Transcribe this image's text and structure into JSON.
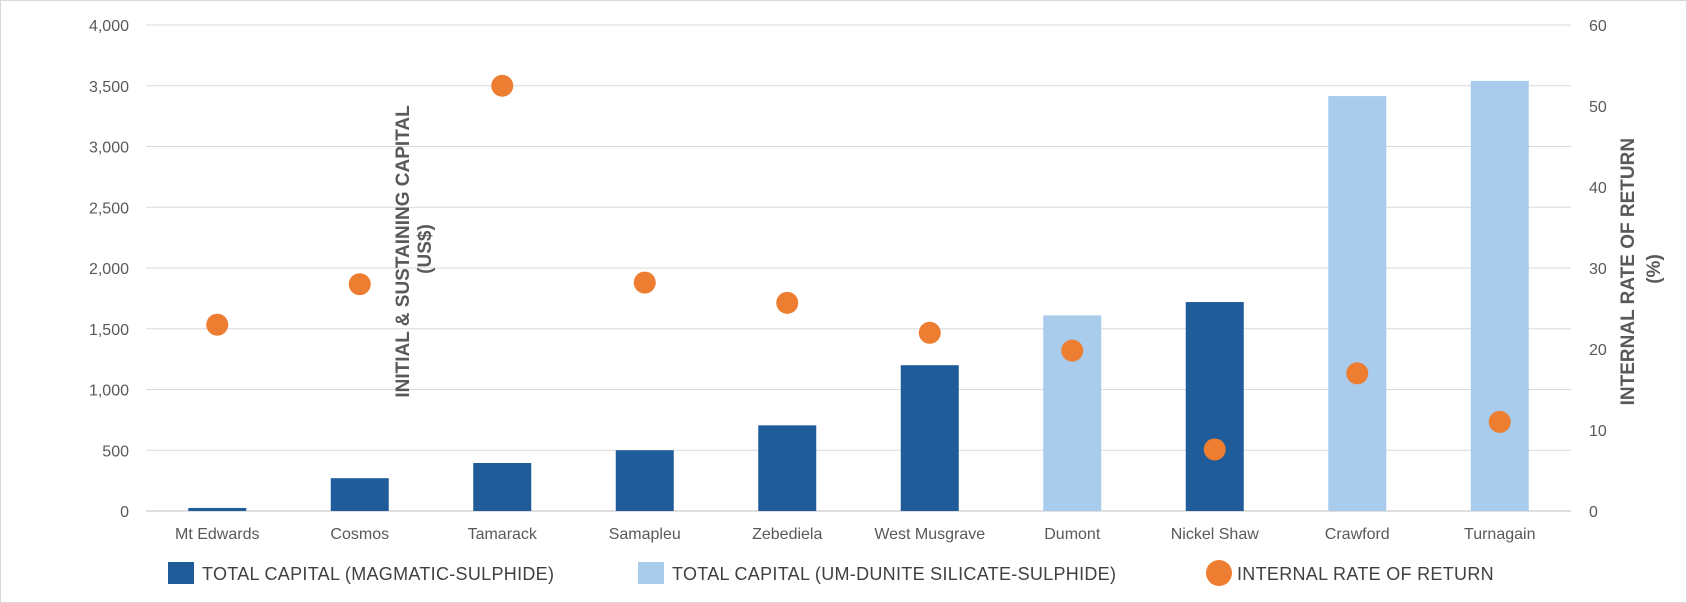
{
  "chart_data": {
    "type": "bar",
    "categories": [
      "Mt Edwards",
      "Cosmos",
      "Tamarack",
      "Samapleu",
      "Zebediela",
      "West Musgrave",
      "Dumont",
      "Nickel Shaw",
      "Crawford",
      "Turnagain"
    ],
    "series": [
      {
        "name": "TOTAL CAPITAL (MAGMATIC-SULPHIDE)",
        "type": "bar",
        "axis": "left",
        "color": "#1f5c99",
        "values": [
          25,
          270,
          395,
          500,
          705,
          1200,
          null,
          1720,
          null,
          null
        ]
      },
      {
        "name": "TOTAL CAPITAL (UM-DUNITE SILICATE-SULPHIDE)",
        "type": "bar",
        "axis": "left",
        "color": "#a9cbec",
        "values": [
          null,
          null,
          null,
          null,
          null,
          null,
          1610,
          null,
          3415,
          3540
        ]
      },
      {
        "name": "INTERNAL RATE OF RETURN",
        "type": "scatter",
        "axis": "right",
        "color": "#ed7d31",
        "values": [
          23,
          28,
          52.5,
          28.2,
          25.7,
          22,
          19.8,
          7.6,
          17,
          11
        ]
      }
    ],
    "ylabel_lines": [
      "INITIAL & SUSTAINING CAPITAL",
      "(US$)"
    ],
    "y2label_lines": [
      "INTERNAL RATE OF RETURN",
      "(%)"
    ],
    "ylim": [
      0,
      4000
    ],
    "y2lim": [
      0,
      60
    ],
    "yticks": [
      "0",
      "500",
      "1,000",
      "1,500",
      "2,000",
      "2,500",
      "3,000",
      "3,500",
      "4,000"
    ],
    "y2ticks": [
      "0",
      "10",
      "20",
      "30",
      "40",
      "50",
      "60"
    ],
    "grid": true,
    "legend_position": "bottom"
  }
}
